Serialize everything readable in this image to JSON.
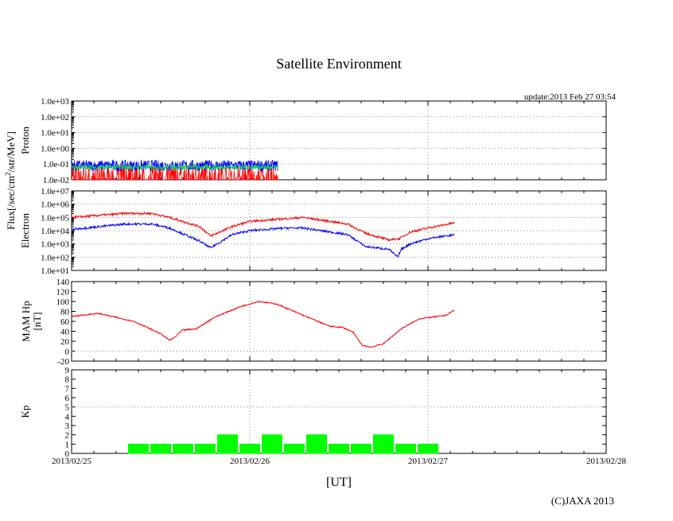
{
  "chart_data": {
    "title": "Satellite Environment",
    "update": "update:2013 Feb 27 03:54",
    "copyright": "(C)JAXA 2013",
    "xlabel": "[UT]",
    "flux_label_base": "Flux[/sec/cm",
    "flux_label_sup": "2",
    "flux_label_tail": "/str/MeV]",
    "x_ticks": [
      "2013/02/25",
      "2013/02/26",
      "2013/02/27",
      "2013/02/28"
    ],
    "xlim_days": [
      0,
      3
    ],
    "data_end_day": 1.16,
    "colors": {
      "red": "#ff0000",
      "blue": "#0000ff",
      "green": "#00dd44",
      "kp": "#00ff00",
      "grid": "#888888"
    },
    "panels": [
      {
        "type": "line",
        "scale": "log",
        "ylabel": "Proton",
        "y_ticks": [
          "1.0e+03",
          "1.0e+02",
          "1.0e+01",
          "1.0e+00",
          "1.0e-01",
          "1.0e-02"
        ],
        "ylim_log10": [
          -2,
          3
        ],
        "series": [
          {
            "color": "red",
            "base_log10": -1.6,
            "noise": 0.6,
            "note_values": "noisy near background"
          },
          {
            "color": "blue",
            "base_log10": -1.1,
            "noise": 0.35
          },
          {
            "color": "green",
            "base_log10": -1.2,
            "noise": 0.15
          }
        ]
      },
      {
        "type": "line",
        "scale": "log",
        "ylabel": "Electron",
        "y_ticks": [
          "1.0e+07",
          "1.0e+06",
          "1.0e+05",
          "1.0e+04",
          "1.0e+03",
          "1.0e+02",
          "1.0e+01"
        ],
        "ylim_log10": [
          1,
          7
        ],
        "series": [
          {
            "color": "red",
            "x_days": [
              0,
              0.3,
              0.45,
              0.55,
              0.72,
              0.78,
              0.9,
              1.0,
              1.2,
              1.3,
              1.55,
              1.65,
              1.78,
              1.84,
              1.9,
              2.0,
              2.15
            ],
            "log10": [
              5.0,
              5.3,
              5.3,
              5.0,
              4.3,
              3.6,
              4.3,
              4.7,
              4.9,
              5.0,
              4.5,
              3.8,
              3.3,
              3.4,
              3.9,
              4.2,
              4.6
            ]
          },
          {
            "color": "blue",
            "x_days": [
              0,
              0.3,
              0.45,
              0.55,
              0.72,
              0.78,
              0.9,
              1.0,
              1.2,
              1.3,
              1.55,
              1.65,
              1.78,
              1.83,
              1.85,
              1.9,
              2.0,
              2.15
            ],
            "log10": [
              4.1,
              4.5,
              4.5,
              4.2,
              3.2,
              2.7,
              3.7,
              4.0,
              4.2,
              4.2,
              3.7,
              2.8,
              2.6,
              2.0,
              2.6,
              3.0,
              3.4,
              3.7
            ]
          }
        ]
      },
      {
        "type": "line",
        "scale": "linear",
        "ylabel": "MAM Hp\n[nT]",
        "y_ticks": [
          "140",
          "120",
          "100",
          "80",
          "60",
          "40",
          "20",
          "0",
          "-20"
        ],
        "ylim": [
          -20,
          140
        ],
        "series": [
          {
            "color": "red",
            "x_days": [
              0,
              0.15,
              0.35,
              0.5,
              0.55,
              0.58,
              0.62,
              0.7,
              0.8,
              0.95,
              1.05,
              1.15,
              1.3,
              1.45,
              1.52,
              1.58,
              1.63,
              1.68,
              1.75,
              1.85,
              1.95,
              2.1,
              2.15
            ],
            "values": [
              70,
              76,
              60,
              35,
              22,
              28,
              42,
              45,
              68,
              90,
              100,
              95,
              72,
              50,
              48,
              38,
              12,
              8,
              15,
              45,
              65,
              72,
              83
            ]
          }
        ]
      },
      {
        "type": "bar",
        "scale": "linear",
        "ylabel": "Kp",
        "y_ticks": [
          "9",
          "8",
          "7",
          "6",
          "5",
          "4",
          "3",
          "2",
          "1",
          "0"
        ],
        "ylim": [
          0,
          9
        ],
        "bar_width_days": 0.125,
        "x_days": [
          0.375,
          0.5,
          0.625,
          0.75,
          0.875,
          1.0,
          1.125,
          1.25,
          1.375,
          1.5,
          1.625,
          1.75,
          1.875,
          2.0,
          2.125
        ],
        "values": [
          1,
          1,
          1,
          1,
          2,
          1,
          2,
          1,
          2,
          1,
          1,
          2,
          1,
          1,
          0
        ]
      }
    ]
  }
}
